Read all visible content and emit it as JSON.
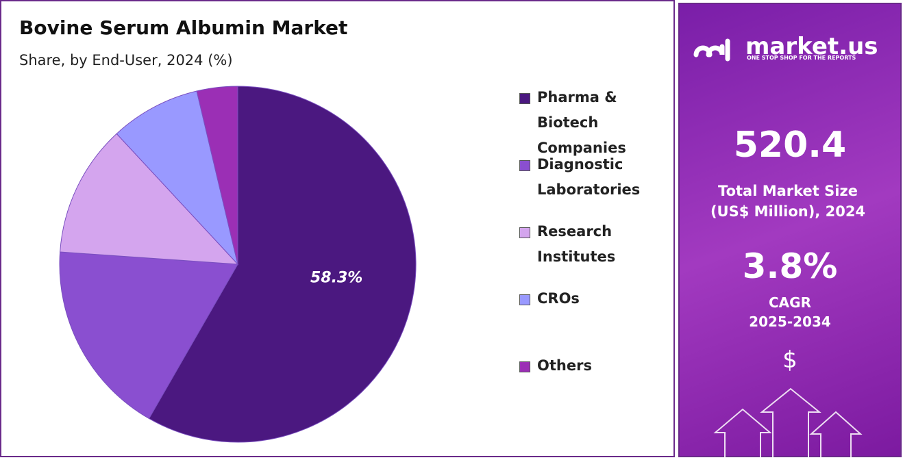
{
  "chart_data": {
    "type": "pie",
    "title": "Bovine Serum Albumin Market",
    "subtitle": "Share, by End-User, 2024 (%)",
    "categories": [
      "Pharma & Biotech Companies",
      "Diagnostic Laboratories",
      "Research Institutes",
      "CROs",
      "Others"
    ],
    "values": [
      58.3,
      17.8,
      12.0,
      8.2,
      3.7
    ],
    "value_labels": [
      "58.3%",
      null,
      null,
      null,
      null
    ],
    "colors": [
      "#4b1880",
      "#8a4fd0",
      "#d4a5ee",
      "#9999ff",
      "#9b2fb5"
    ],
    "legend": "right"
  },
  "sidebar": {
    "brand": "market.us",
    "tagline": "ONE STOP SHOP FOR THE REPORTS",
    "market_size": "520.4",
    "market_size_label": "Total Market Size (US$ Million), 2024",
    "cagr": "3.8%",
    "cagr_label": "CAGR",
    "cagr_period": "2025-2034",
    "icon": "$"
  }
}
